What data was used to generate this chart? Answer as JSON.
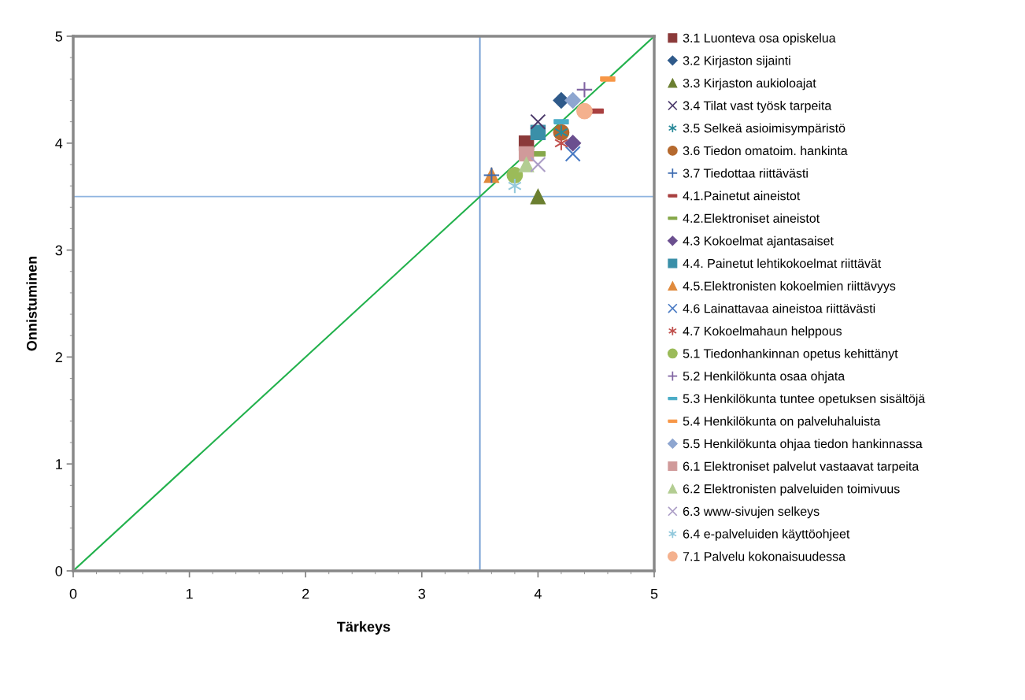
{
  "chart_data": {
    "type": "scatter",
    "xlabel": "Tärkeys",
    "ylabel": "Onnistuminen",
    "xlim": [
      0,
      5
    ],
    "ylim": [
      0,
      5
    ],
    "xticks": [
      0,
      1,
      2,
      3,
      4,
      5
    ],
    "yticks": [
      0,
      1,
      2,
      3,
      4,
      5
    ],
    "grid": false,
    "legend": "right",
    "ref_lines": [
      {
        "axis": "x",
        "value": 3.5,
        "color": "#6b97d0"
      },
      {
        "axis": "y",
        "value": 3.5,
        "color": "#8fb4e0"
      }
    ],
    "series": [
      {
        "name": "3.1 Luonteva osa opiskelua",
        "color": "#8b3a3a",
        "marker": "square",
        "x": [
          3.9
        ],
        "values": [
          4.0
        ]
      },
      {
        "name": "3.2 Kirjaston sijainti",
        "color": "#2f5a8a",
        "marker": "diamond",
        "x": [
          4.2
        ],
        "values": [
          4.4
        ]
      },
      {
        "name": "3.3 Kirjaston aukioloajat",
        "color": "#6b7f30",
        "marker": "triangle",
        "x": [
          4.0
        ],
        "values": [
          3.5
        ]
      },
      {
        "name": "3.4 Tilat vast työsk tarpeita",
        "color": "#4b3a6b",
        "marker": "x",
        "x": [
          4.0
        ],
        "values": [
          4.2
        ]
      },
      {
        "name": "3.5 Selkeä asioimisympäristö",
        "color": "#2a8a9a",
        "marker": "cross",
        "x": [
          4.2
        ],
        "values": [
          4.1
        ]
      },
      {
        "name": "3.6 Tiedon omatoim. hankinta",
        "color": "#b5692e",
        "marker": "circle",
        "x": [
          4.2
        ],
        "values": [
          4.1
        ]
      },
      {
        "name": "3.7 Tiedottaa riittävästi",
        "color": "#3d6bb0",
        "marker": "plus",
        "x": [
          3.6
        ],
        "values": [
          3.7
        ]
      },
      {
        "name": "4.1.Painetut aineistot",
        "color": "#a94040",
        "x": [
          4.5
        ],
        "values": [
          4.3
        ]
      },
      {
        "name": "4.2.Elektroniset aineistot",
        "color": "#86a84a",
        "x": [
          4.0
        ],
        "values": [
          3.9
        ]
      },
      {
        "name": "4.3 Kokoelmat ajantasaiset",
        "color": "#6b4f8f",
        "marker": "diamond",
        "x": [
          4.3
        ],
        "values": [
          4.0
        ]
      },
      {
        "name": "4.4. Painetut lehtikokoelmat riittävät",
        "color": "#3a8fa8",
        "marker": "square",
        "x": [
          4.0
        ],
        "values": [
          4.1
        ]
      },
      {
        "name": "4.5.Elektronisten kokoelmien riittävyys",
        "color": "#e08a3c",
        "marker": "triangle",
        "x": [
          3.6
        ],
        "values": [
          3.7
        ]
      },
      {
        "name": "4.6 Lainattavaa aineistoa riittävästi",
        "color": "#4a7bc4",
        "marker": "x",
        "x": [
          4.3
        ],
        "values": [
          3.9
        ]
      },
      {
        "name": "4.7 Kokoelmahaun helppous",
        "color": "#c0504d",
        "marker": "cross",
        "x": [
          4.2
        ],
        "values": [
          4.0
        ]
      },
      {
        "name": "5.1 Tiedonhankinnan opetus kehittänyt",
        "color": "#9bbb59",
        "marker": "circle",
        "x": [
          3.8
        ],
        "values": [
          3.7
        ]
      },
      {
        "name": "5.2 Henkilökunta osaa ohjata",
        "color": "#8064a2",
        "marker": "plus",
        "x": [
          4.4
        ],
        "values": [
          4.5
        ]
      },
      {
        "name": "5.3 Henkilökunta tuntee opetuksen sisältöjä",
        "color": "#4bacc6",
        "x": [
          4.2
        ],
        "values": [
          4.2
        ]
      },
      {
        "name": "5.4 Henkilökunta on palveluhaluista",
        "color": "#f79646",
        "x": [
          4.6
        ],
        "values": [
          4.6
        ]
      },
      {
        "name": "5.5 Henkilökunta ohjaa tiedon hankinnassa",
        "color": "#8ea6d0",
        "marker": "diamond",
        "x": [
          4.3
        ],
        "values": [
          4.4
        ]
      },
      {
        "name": "6.1 Elektroniset palvelut vastaavat tarpeita",
        "color": "#d09a9a",
        "marker": "square",
        "x": [
          3.9
        ],
        "values": [
          3.9
        ]
      },
      {
        "name": "6.2 Elektronisten palveluiden toimivuus",
        "color": "#b3cd92",
        "marker": "triangle",
        "x": [
          3.9
        ],
        "values": [
          3.8
        ]
      },
      {
        "name": "6.3 www-sivujen selkeys",
        "color": "#ab9dc6",
        "marker": "x",
        "x": [
          4.0
        ],
        "values": [
          3.8
        ]
      },
      {
        "name": "6.4 e-palveluiden käyttöohjeet",
        "color": "#93c9dc",
        "marker": "cross",
        "x": [
          3.8
        ],
        "values": [
          3.6
        ]
      },
      {
        "name": "7.1 Palvelu kokonaisuudessa",
        "color": "#f4b18e",
        "marker": "circle",
        "x": [
          4.4
        ],
        "values": [
          4.3
        ]
      },
      {
        "type": "line",
        "color": "#22b14c",
        "marker": "none",
        "x": [
          0,
          5
        ],
        "values": [
          0,
          5
        ]
      }
    ]
  }
}
